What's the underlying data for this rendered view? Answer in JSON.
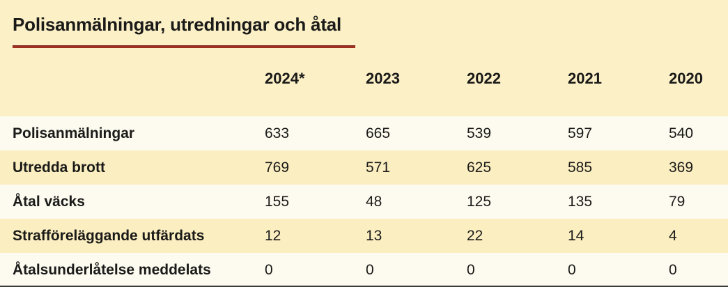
{
  "page": {
    "background_color": "#fcf0c7",
    "row_light_color": "#fdfaef",
    "row_tint_color": "#fbeec1",
    "accent_rule_color": "#a0301f",
    "text_color": "#1a1a18",
    "bottom_edge_color": "#3a3a38"
  },
  "chart_data": {
    "type": "table",
    "title": "Polisanmälningar, utredningar och åtal",
    "columns": [
      "2024*",
      "2023",
      "2022",
      "2021",
      "2020"
    ],
    "rows": [
      {
        "label": "Polisanmälningar",
        "values": [
          "633",
          "665",
          "539",
          "597",
          "540"
        ]
      },
      {
        "label": "Utredda brott",
        "values": [
          "769",
          "571",
          "625",
          "585",
          "369"
        ]
      },
      {
        "label": "Åtal väcks",
        "values": [
          "155",
          "48",
          "125",
          "135",
          "79"
        ]
      },
      {
        "label": "Strafföreläggande utfärdats",
        "values": [
          "12",
          "13",
          "22",
          "14",
          "4"
        ]
      },
      {
        "label": "Åtalsunderlåtelse meddelats",
        "values": [
          "0",
          "0",
          "0",
          "0",
          "0"
        ]
      }
    ],
    "layout": {
      "row_striping": "alternating light/tint starting light",
      "value_alignment": "left",
      "footnote_marker_on_first_column": "*"
    }
  }
}
